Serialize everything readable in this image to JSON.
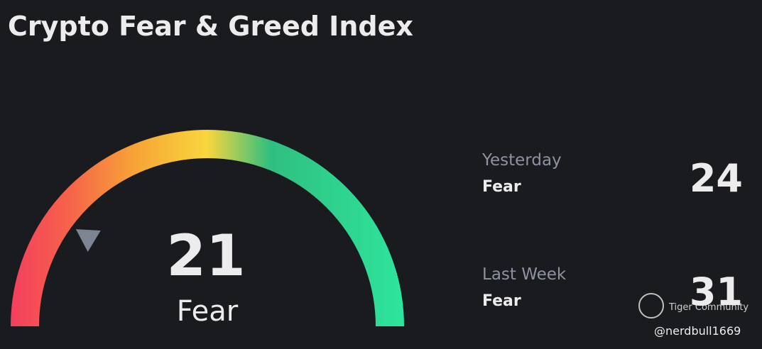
{
  "title": "Crypto Fear & Greed Index",
  "chart_data": {
    "type": "gauge",
    "value": 21,
    "classification": "Fear",
    "range": [
      0,
      100
    ]
  },
  "history": [
    {
      "label": "Yesterday",
      "classification": "Fear",
      "value": 24
    },
    {
      "label": "Last Week",
      "classification": "Fear",
      "value": 31
    }
  ],
  "watermark": {
    "brand": "Tiger Community",
    "handle": "@nerdbull1669"
  }
}
